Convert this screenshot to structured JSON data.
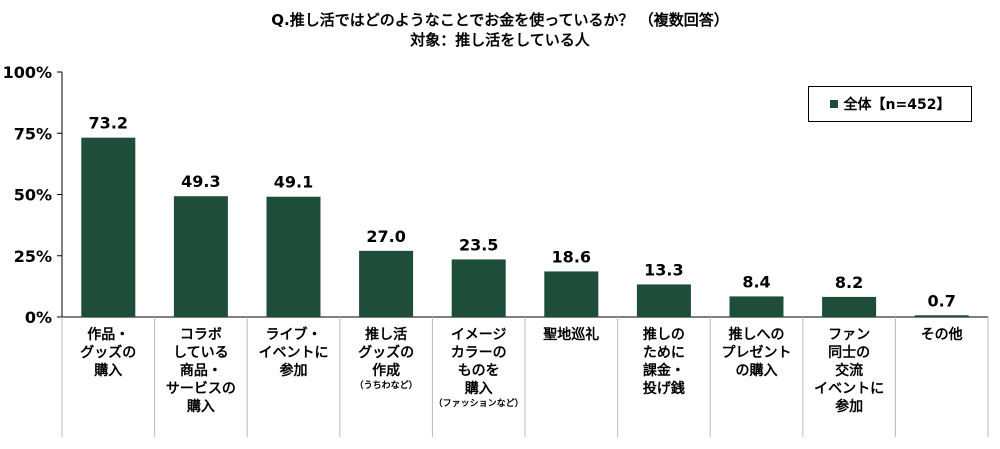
{
  "chart_data": {
    "type": "bar",
    "title": "Q.推し活ではどのようなことでお金を使っているか？ （複数回答）",
    "subtitle": "対象：推し活をしている人",
    "categories": [
      {
        "label": "作品・\nグッズの\n購入",
        "note": ""
      },
      {
        "label": "コラボ\nしている\n商品・\nサービスの\n購入",
        "note": ""
      },
      {
        "label": "ライブ・\nイベントに\n参加",
        "note": ""
      },
      {
        "label": "推し活\nグッズの\n作成",
        "note": "（うちわなど）"
      },
      {
        "label": "イメージ\nカラーの\nものを\n購入",
        "note": "（ファッションなど）"
      },
      {
        "label": "聖地巡礼",
        "note": ""
      },
      {
        "label": "推しの\nために\n課金・\n投げ銭",
        "note": ""
      },
      {
        "label": "推しへの\nプレゼント\nの購入",
        "note": ""
      },
      {
        "label": "ファン\n同士の\n交流\nイベントに\n参加",
        "note": ""
      },
      {
        "label": "その他",
        "note": ""
      }
    ],
    "series": [
      {
        "name": "全体【n=452】",
        "values": [
          73.2,
          49.3,
          49.1,
          27.0,
          23.5,
          18.6,
          13.3,
          8.4,
          8.2,
          0.7
        ],
        "value_labels": [
          "73.2",
          "49.3",
          "49.1",
          "27.0",
          "23.5",
          "18.6",
          "13.3",
          "8.4",
          "8.2",
          "0.7"
        ]
      }
    ],
    "ylim": [
      0,
      100
    ],
    "yticks": [
      0,
      25,
      50,
      75,
      100
    ],
    "ytick_labels": [
      "0%",
      "25%",
      "50%",
      "75%",
      "100%"
    ],
    "grid": false,
    "legend_position": "top-right",
    "colors": {
      "bar": "#1e4d3a",
      "axis": "#000000",
      "gridline": "#bbbbbb"
    }
  }
}
